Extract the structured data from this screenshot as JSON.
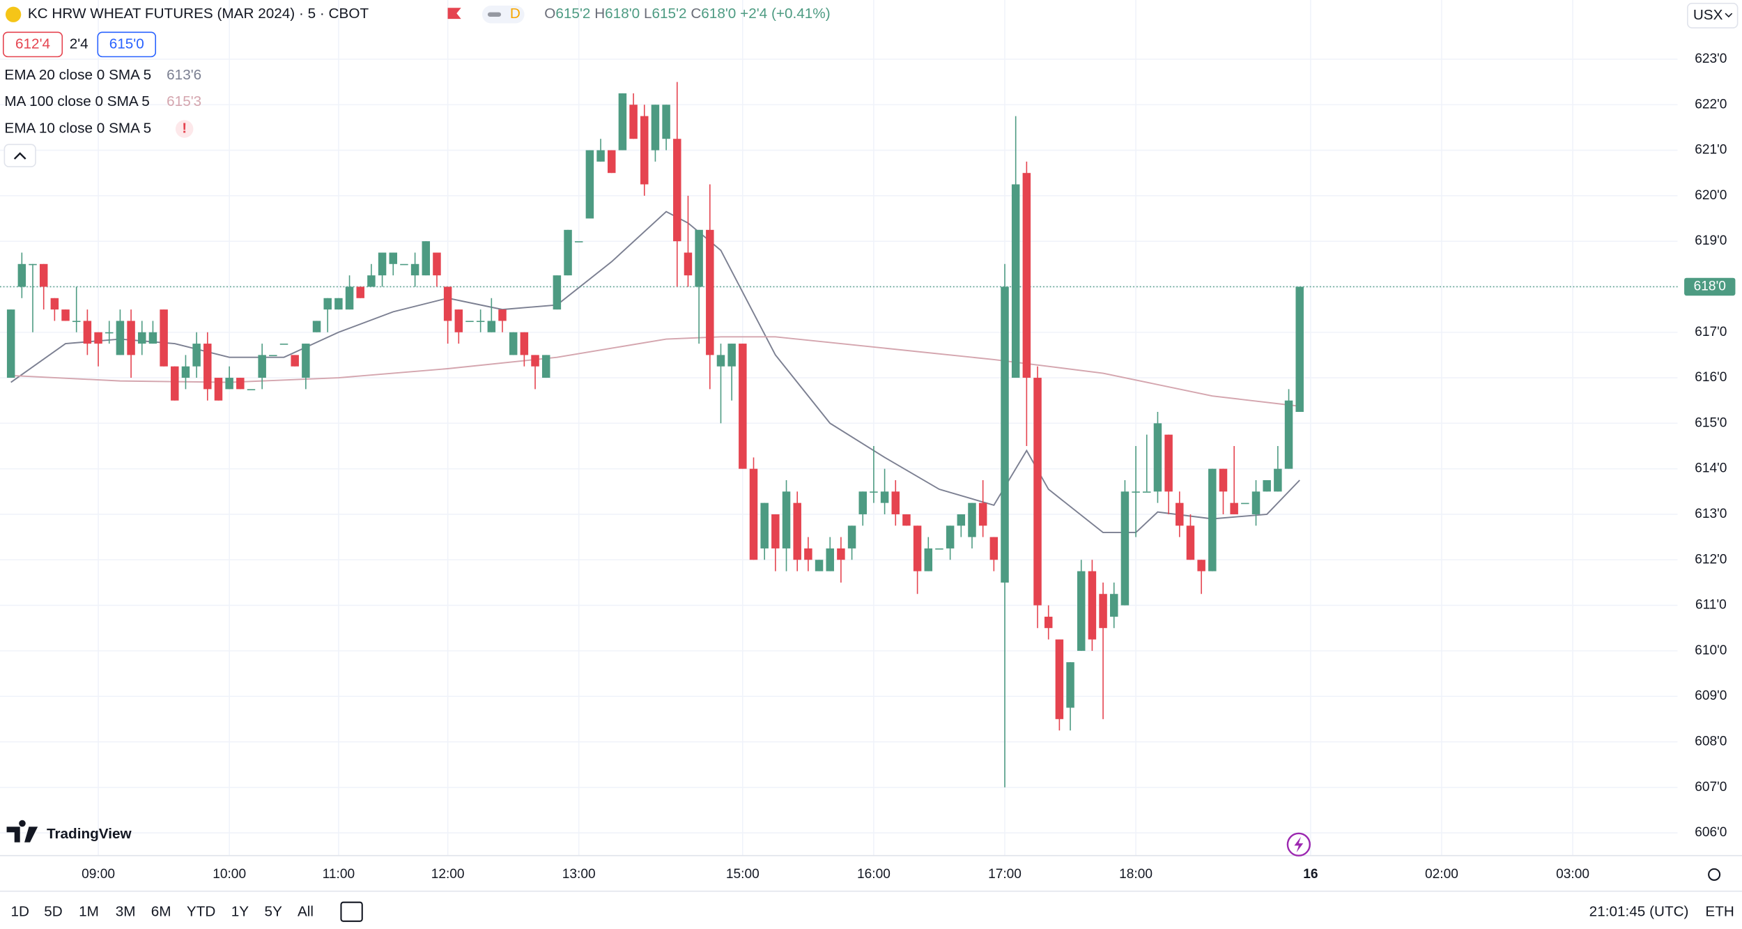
{
  "header": {
    "title": "KC HRW WHEAT FUTURES (MAR 2024) · 5 · CBOT",
    "badge": "D",
    "ohlc": [
      {
        "label": "O",
        "value": "615'2"
      },
      {
        "label": "H",
        "value": "618'0"
      },
      {
        "label": "L",
        "value": "615'2"
      },
      {
        "label": "C",
        "value": "618'0"
      }
    ],
    "change": "+2'4 (+0.41%)",
    "currency": "USX",
    "sell": "612'4",
    "spread": "2'4",
    "buy": "615'0"
  },
  "indicator_error": {
    "name": "EMA 10 close 0 SMA 5",
    "status": "!"
  },
  "logo": "TradingView",
  "ranges": [
    "1D",
    "5D",
    "1M",
    "3M",
    "6M",
    "YTD",
    "1Y",
    "5Y",
    "All"
  ],
  "clock": "21:01:45 (UTC)",
  "session": "ETH",
  "chart_data": {
    "type": "candlestick",
    "up_color": "#4d9b82",
    "down_color": "#e5434f",
    "grid": true,
    "xlim": [
      -1,
      152.6
    ],
    "ylim": [
      605.5,
      624.3
    ],
    "xticks": [
      {
        "value": 8,
        "label": "09:00"
      },
      {
        "value": 20,
        "label": "10:00"
      },
      {
        "value": 30,
        "label": "11:00"
      },
      {
        "value": 40,
        "label": "12:00"
      },
      {
        "value": 52,
        "label": "13:00"
      },
      {
        "value": 67,
        "label": "15:00"
      },
      {
        "value": 79,
        "label": "16:00"
      },
      {
        "value": 91,
        "label": "17:00"
      },
      {
        "value": 103,
        "label": "18:00"
      },
      {
        "value": 119,
        "label": "16"
      },
      {
        "value": 131,
        "label": "02:00"
      },
      {
        "value": 143,
        "label": "03:00"
      }
    ],
    "yticks": [
      {
        "value": 606,
        "label": "606'0"
      },
      {
        "value": 607,
        "label": "607'0"
      },
      {
        "value": 608,
        "label": "608'0"
      },
      {
        "value": 609,
        "label": "609'0"
      },
      {
        "value": 610,
        "label": "610'0"
      },
      {
        "value": 611,
        "label": "611'0"
      },
      {
        "value": 612,
        "label": "612'0"
      },
      {
        "value": 613,
        "label": "613'0"
      },
      {
        "value": 614,
        "label": "614'0"
      },
      {
        "value": 615,
        "label": "615'0"
      },
      {
        "value": 616,
        "label": "616'0"
      },
      {
        "value": 617,
        "label": "617'0"
      },
      {
        "value": 618,
        "label": "618'0"
      },
      {
        "value": 619,
        "label": "619'0"
      },
      {
        "value": 620,
        "label": "620'0"
      },
      {
        "value": 621,
        "label": "621'0"
      },
      {
        "value": 622,
        "label": "622'0"
      },
      {
        "value": 623,
        "label": "623'0"
      }
    ],
    "last_price": {
      "value": 618,
      "label": "618'0"
    },
    "ohlc": [
      [
        616,
        617.5,
        616,
        617.5
      ],
      [
        618,
        618.75,
        617.75,
        618.5
      ],
      [
        618.5,
        618.5,
        617,
        618.5
      ],
      [
        618.5,
        618.5,
        617.5,
        618
      ],
      [
        617.75,
        617.75,
        617.25,
        617.5
      ],
      [
        617.5,
        617.5,
        617.25,
        617.25
      ],
      [
        617.25,
        618,
        617,
        617.25
      ],
      [
        617.25,
        617.5,
        616.5,
        616.75
      ],
      [
        617,
        617,
        616.25,
        616.75
      ],
      [
        617,
        617.25,
        616.75,
        617
      ],
      [
        616.5,
        617.5,
        616.5,
        617.25
      ],
      [
        617.25,
        617.5,
        616,
        616.5
      ],
      [
        616.75,
        617.25,
        616.5,
        617
      ],
      [
        616.75,
        617.25,
        616.75,
        617
      ],
      [
        617.5,
        617.5,
        616.25,
        616.25
      ],
      [
        616.25,
        616.25,
        615.5,
        615.5
      ],
      [
        616,
        616.5,
        615.75,
        616.25
      ],
      [
        616.25,
        617,
        616,
        616.75
      ],
      [
        616.75,
        617,
        615.5,
        615.75
      ],
      [
        616,
        616,
        615.5,
        615.5
      ],
      [
        615.75,
        616.25,
        615.75,
        616
      ],
      [
        616,
        616,
        615.75,
        615.75
      ],
      [
        615.75,
        615.75,
        615.75,
        615.75
      ],
      [
        616,
        616.75,
        615.75,
        616.5
      ],
      [
        616.5,
        616.5,
        616.5,
        616.5
      ],
      [
        616.75,
        616.75,
        616.75,
        616.75
      ],
      [
        616.5,
        616.5,
        616.25,
        616.25
      ],
      [
        616,
        616.75,
        615.75,
        616.75
      ],
      [
        617,
        617.25,
        617,
        617.25
      ],
      [
        617.5,
        617.75,
        617,
        617.75
      ],
      [
        617.5,
        617.75,
        617.5,
        617.75
      ],
      [
        617.5,
        618.25,
        617.5,
        618
      ],
      [
        618,
        618,
        617.75,
        617.75
      ],
      [
        618,
        618.5,
        618,
        618.25
      ],
      [
        618.25,
        618.75,
        618,
        618.75
      ],
      [
        618.5,
        618.75,
        618.25,
        618.75
      ],
      [
        618.5,
        618.5,
        618.5,
        618.5
      ],
      [
        618.25,
        618.75,
        618,
        618.5
      ],
      [
        618.25,
        619,
        618.25,
        619
      ],
      [
        618.75,
        618.75,
        618,
        618.25
      ],
      [
        618,
        618,
        616.75,
        617.25
      ],
      [
        617.5,
        617.5,
        616.75,
        617
      ],
      [
        617.25,
        617.25,
        617.25,
        617.25
      ],
      [
        617.25,
        617.5,
        617,
        617.25
      ],
      [
        617,
        617.75,
        617,
        617.25
      ],
      [
        617.5,
        617.5,
        617,
        617.25
      ],
      [
        616.5,
        617,
        616.5,
        617
      ],
      [
        617,
        617,
        616.25,
        616.5
      ],
      [
        616.5,
        616.5,
        615.75,
        616.25
      ],
      [
        616,
        616.5,
        616,
        616.5
      ],
      [
        617.5,
        618.25,
        617.5,
        618.25
      ],
      [
        618.25,
        619.25,
        618.25,
        619.25
      ],
      [
        619,
        619,
        619,
        619
      ],
      [
        619.5,
        621,
        619.5,
        621
      ],
      [
        620.75,
        621.25,
        620.75,
        621
      ],
      [
        621,
        621,
        620.5,
        620.5
      ],
      [
        621,
        622.25,
        621,
        622.25
      ],
      [
        622,
        622.25,
        621.25,
        621.25
      ],
      [
        621.75,
        622,
        620,
        620.25
      ],
      [
        621,
        622,
        620.75,
        622
      ],
      [
        621.25,
        622,
        621,
        622
      ],
      [
        621.25,
        622.5,
        618,
        619
      ],
      [
        618.75,
        620,
        618,
        618.25
      ],
      [
        618,
        619.25,
        616.75,
        619.25
      ],
      [
        619.25,
        620.25,
        615.75,
        616.5
      ],
      [
        616.25,
        616.75,
        615,
        616.5
      ],
      [
        616.25,
        616.75,
        615.5,
        616.75
      ],
      [
        616.75,
        616.75,
        614,
        614
      ],
      [
        614,
        614.25,
        612,
        612
      ],
      [
        612.25,
        613.25,
        612,
        613.25
      ],
      [
        613,
        613,
        611.75,
        612.25
      ],
      [
        612.25,
        613.75,
        611.75,
        613.5
      ],
      [
        613.25,
        613.5,
        611.75,
        612
      ],
      [
        612.25,
        612.5,
        611.75,
        612
      ],
      [
        611.75,
        612,
        611.75,
        612
      ],
      [
        611.75,
        612.5,
        611.75,
        612.25
      ],
      [
        612.25,
        612.5,
        611.5,
        612
      ],
      [
        612.25,
        612.75,
        612,
        612.75
      ],
      [
        613,
        613.5,
        612.75,
        613.5
      ],
      [
        613.5,
        614.5,
        613.25,
        613.5
      ],
      [
        613.25,
        614,
        613,
        613.5
      ],
      [
        613.5,
        613.75,
        612.75,
        613
      ],
      [
        613,
        613,
        612.75,
        612.75
      ],
      [
        612.75,
        612.75,
        611.25,
        611.75
      ],
      [
        611.75,
        612.5,
        611.75,
        612.25
      ],
      [
        612.25,
        612.25,
        612.25,
        612.25
      ],
      [
        612.25,
        612.75,
        612,
        612.75
      ],
      [
        612.75,
        613,
        612.5,
        613
      ],
      [
        612.5,
        613.25,
        612.25,
        613.25
      ],
      [
        613.25,
        613.75,
        612.5,
        612.75
      ],
      [
        612.5,
        612.5,
        611.75,
        612
      ],
      [
        611.5,
        618.5,
        607,
        618
      ],
      [
        616,
        621.75,
        616,
        620.25
      ],
      [
        620.5,
        620.75,
        614.5,
        616
      ],
      [
        616,
        616.25,
        610.5,
        611
      ],
      [
        610.75,
        611,
        610.25,
        610.5
      ],
      [
        610.25,
        610.25,
        608.25,
        608.5
      ],
      [
        608.75,
        609.75,
        608.25,
        609.75
      ],
      [
        610,
        612,
        610,
        611.75
      ],
      [
        611.75,
        612,
        610,
        610.25
      ],
      [
        611.25,
        611.5,
        608.5,
        610.5
      ],
      [
        610.75,
        611.5,
        610.5,
        611.25
      ],
      [
        611,
        613.75,
        611,
        613.5
      ],
      [
        613.5,
        614.5,
        612.5,
        613.5
      ],
      [
        613.5,
        614.75,
        613.5,
        613.5
      ],
      [
        613.5,
        615.25,
        613.25,
        615
      ],
      [
        614.75,
        614.75,
        613,
        613.5
      ],
      [
        613.25,
        613.5,
        612.5,
        612.75
      ],
      [
        612.75,
        613,
        612,
        612
      ],
      [
        612,
        612,
        611.25,
        611.75
      ],
      [
        611.75,
        614,
        611.75,
        614
      ],
      [
        614,
        614,
        613,
        613.5
      ],
      [
        613.25,
        614.5,
        613,
        613
      ],
      [
        613.25,
        613.25,
        613.25,
        613.25
      ],
      [
        613,
        613.75,
        612.75,
        613.5
      ],
      [
        613.5,
        613.75,
        613.5,
        613.75
      ],
      [
        613.5,
        614.5,
        613.5,
        614
      ],
      [
        614,
        615.75,
        614,
        615.5
      ],
      [
        615.25,
        618,
        615.25,
        618
      ]
    ],
    "series": [
      {
        "name": "EMA 20 close 0 SMA 5",
        "legend_value": "613'6",
        "color": "#7b7f91",
        "x": [
          0,
          5,
          10,
          15,
          20,
          25,
          30,
          35,
          40,
          45,
          50,
          55,
          60,
          62,
          65,
          70,
          75,
          80,
          85,
          90,
          93,
          95,
          100,
          103,
          105,
          110,
          115,
          118
        ],
        "values": [
          615.9,
          616.75,
          616.85,
          616.75,
          616.45,
          616.45,
          617,
          617.45,
          617.75,
          617.5,
          617.6,
          618.55,
          619.65,
          619.4,
          618.8,
          616.5,
          615,
          614.25,
          613.55,
          613.2,
          614.4,
          613.55,
          612.6,
          612.6,
          613.05,
          612.9,
          613,
          613.75
        ]
      },
      {
        "name": "MA 100 close 0 SMA 5",
        "legend_value": "615'3",
        "color": "#d4a5ae",
        "x": [
          0,
          10,
          20,
          30,
          40,
          50,
          60,
          65,
          70,
          80,
          90,
          95,
          100,
          110,
          118
        ],
        "values": [
          616.05,
          615.93,
          615.9,
          616,
          616.2,
          616.45,
          616.85,
          616.9,
          616.9,
          616.65,
          616.4,
          616.25,
          616.1,
          615.6,
          615.375
        ]
      }
    ]
  }
}
